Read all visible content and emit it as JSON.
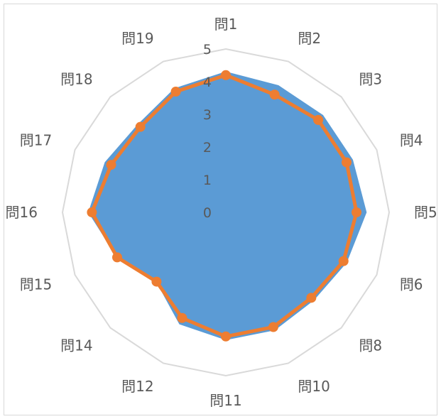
{
  "chart_data": {
    "type": "radar",
    "categories": [
      "問1",
      "問2",
      "問3",
      "問4",
      "問5",
      "問6",
      "問8",
      "問10",
      "問11",
      "問12",
      "問14",
      "問15",
      "問16",
      "問17",
      "問18",
      "問19"
    ],
    "r_ticks": [
      "0",
      "1",
      "2",
      "3",
      "4",
      "5"
    ],
    "rlim": [
      0,
      5
    ],
    "grid": true,
    "legend": "none",
    "series": [
      {
        "type": "filled",
        "color": "#5b9bd5",
        "values": [
          4.3,
          4.2,
          4.2,
          4.2,
          4.3,
          4.0,
          3.8,
          3.9,
          3.9,
          3.7,
          3.0,
          3.6,
          4.2,
          4.0,
          3.8,
          4.1
        ]
      },
      {
        "type": "line-marker",
        "color": "#ed7d31",
        "values": [
          4.2,
          3.9,
          4.0,
          4.0,
          4.0,
          3.9,
          3.7,
          3.8,
          3.8,
          3.5,
          3.0,
          3.6,
          4.1,
          3.8,
          3.7,
          4.0
        ]
      }
    ]
  }
}
